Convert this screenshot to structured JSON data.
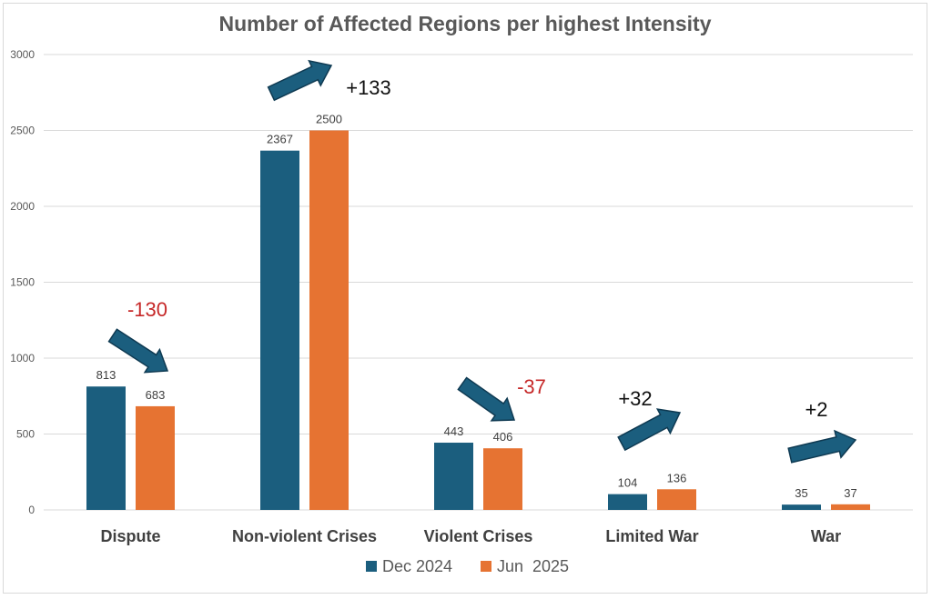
{
  "chart_data": {
    "type": "bar",
    "title": "Number of Affected Regions per highest Intensity",
    "categories": [
      "Dispute",
      "Non-violent Crises",
      "Violent Crises",
      "Limited War",
      "War"
    ],
    "series": [
      {
        "name": "Dec 2024",
        "color": "#1b5e7e",
        "values": [
          813,
          2367,
          443,
          104,
          35
        ]
      },
      {
        "name": "Jun  2025",
        "color": "#e67332",
        "values": [
          683,
          2500,
          406,
          136,
          37
        ]
      }
    ],
    "ylim": [
      0,
      3000
    ],
    "yticks": [
      "0",
      "500",
      "1000",
      "1500",
      "2000",
      "2500",
      "3000"
    ],
    "grid": true,
    "legend_position": "bottom",
    "annotations": [
      {
        "text": "-130",
        "color": "#c62828",
        "direction": "down"
      },
      {
        "text": "+133",
        "color": "#111111",
        "direction": "up"
      },
      {
        "text": "-37",
        "color": "#c62828",
        "direction": "down"
      },
      {
        "text": "+32",
        "color": "#111111",
        "direction": "up"
      },
      {
        "text": "+2",
        "color": "#111111",
        "direction": "up"
      }
    ],
    "arrow_color": "#1b5e7e"
  }
}
